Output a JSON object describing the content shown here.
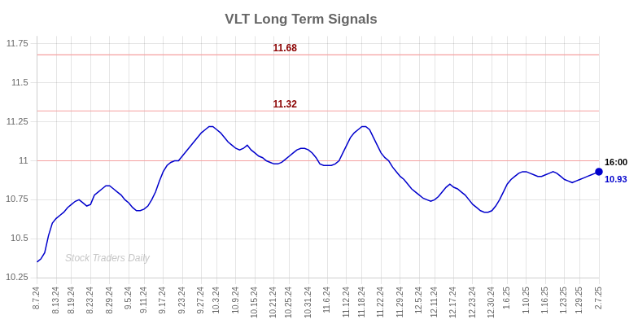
{
  "chart_data": {
    "type": "line",
    "title": "VLT Long Term Signals",
    "watermark": "Stock Traders Daily",
    "categories": [
      "8.7.24",
      null,
      null,
      null,
      null,
      "8.13.24",
      null,
      null,
      null,
      "8.19.24",
      null,
      null,
      null,
      null,
      "8.23.24",
      null,
      null,
      null,
      null,
      "8.29.24",
      null,
      null,
      null,
      null,
      "9.5.24",
      null,
      null,
      null,
      "9.11.24",
      null,
      null,
      null,
      null,
      "9.17.24",
      null,
      null,
      null,
      null,
      "9.23.24",
      null,
      null,
      null,
      null,
      "9.27.24",
      null,
      null,
      null,
      "10.3.24",
      null,
      null,
      null,
      null,
      "10.9.24",
      null,
      null,
      null,
      null,
      "10.15.24",
      null,
      null,
      null,
      null,
      "10.21.24",
      null,
      null,
      null,
      "10.25.24",
      null,
      null,
      null,
      null,
      "10.31.24",
      null,
      null,
      null,
      null,
      "11.6.24",
      null,
      null,
      null,
      null,
      "11.12.24",
      null,
      null,
      null,
      "11.18.24",
      null,
      null,
      null,
      null,
      "11.22.24",
      null,
      null,
      null,
      null,
      "11.29.24",
      null,
      null,
      null,
      null,
      "12.5.24",
      null,
      null,
      null,
      "12.11.24",
      null,
      null,
      null,
      null,
      "12.17.24",
      null,
      null,
      null,
      null,
      "12.23.24",
      null,
      null,
      null,
      null,
      "12.30.24",
      null,
      null,
      null,
      "1.6.25",
      null,
      null,
      null,
      null,
      "1.10.25",
      null,
      null,
      null,
      null,
      "1.16.25",
      null,
      null,
      null,
      null,
      "1.23.25",
      null,
      null,
      null,
      "1.29.25",
      null,
      null,
      null,
      null,
      "2.7.25"
    ],
    "values": [
      10.35,
      10.37,
      10.41,
      10.52,
      10.6,
      10.63,
      10.65,
      10.67,
      10.7,
      10.72,
      10.74,
      10.75,
      10.73,
      10.71,
      10.72,
      10.78,
      10.8,
      10.82,
      10.84,
      10.84,
      10.82,
      10.8,
      10.78,
      10.75,
      10.73,
      10.7,
      10.68,
      10.68,
      10.69,
      10.71,
      10.75,
      10.8,
      10.87,
      10.93,
      10.97,
      10.99,
      11.0,
      11.0,
      11.03,
      11.06,
      11.09,
      11.12,
      11.15,
      11.18,
      11.2,
      11.22,
      11.22,
      11.2,
      11.18,
      11.15,
      11.12,
      11.1,
      11.08,
      11.07,
      11.08,
      11.1,
      11.07,
      11.05,
      11.03,
      11.02,
      11.0,
      10.99,
      10.98,
      10.98,
      10.99,
      11.01,
      11.03,
      11.05,
      11.07,
      11.08,
      11.08,
      11.07,
      11.05,
      11.02,
      10.98,
      10.97,
      10.97,
      10.97,
      10.98,
      11.0,
      11.05,
      11.1,
      11.15,
      11.18,
      11.2,
      11.22,
      11.22,
      11.2,
      11.15,
      11.1,
      11.05,
      11.02,
      11.0,
      10.96,
      10.93,
      10.9,
      10.88,
      10.85,
      10.82,
      10.8,
      10.78,
      10.76,
      10.75,
      10.74,
      10.75,
      10.77,
      10.8,
      10.83,
      10.85,
      10.83,
      10.82,
      10.8,
      10.78,
      10.75,
      10.72,
      10.7,
      10.68,
      10.67,
      10.67,
      10.68,
      10.71,
      10.75,
      10.8,
      10.85,
      10.88,
      10.9,
      10.92,
      10.93,
      10.93,
      10.92,
      10.91,
      10.9,
      10.9,
      10.91,
      10.92,
      10.93,
      10.92,
      10.9,
      10.88,
      10.87,
      10.86,
      10.87,
      10.88,
      10.89,
      10.9,
      10.91,
      10.92,
      10.93
    ],
    "color": "#0000cc",
    "hlines": [
      {
        "value": 11.68,
        "label": "11.68",
        "color": "#f5a0a0",
        "label_color": "#8b0000"
      },
      {
        "value": 11.32,
        "label": "11.32",
        "color": "#f5a0a0",
        "label_color": "#8b0000"
      },
      {
        "value": 11,
        "color": "#f5a0a0"
      }
    ],
    "annotations": [
      {
        "text": "16:00"
      },
      {
        "text": "10.93",
        "color": "#0000cc"
      }
    ],
    "ylim": [
      10.25,
      11.8
    ],
    "yticks": [
      10.25,
      10.5,
      10.75,
      11,
      11.25,
      11.5,
      11.75
    ],
    "grid": true
  }
}
